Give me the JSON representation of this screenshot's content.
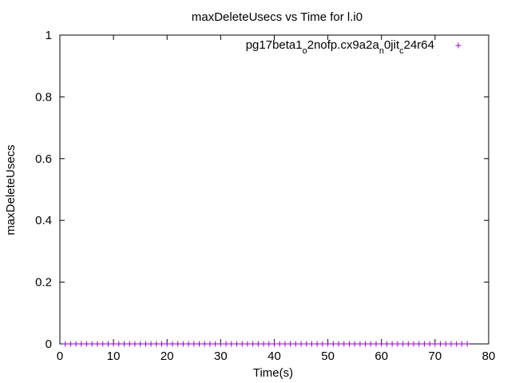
{
  "chart_data": {
    "type": "scatter",
    "title": "maxDeleteUsecs vs Time for l.i0",
    "xlabel": "Time(s)",
    "ylabel": "maxDeleteUsecs",
    "xlim": [
      0,
      80
    ],
    "ylim": [
      0,
      1
    ],
    "x_ticks": [
      0,
      10,
      20,
      30,
      40,
      50,
      60,
      70,
      80
    ],
    "y_ticks": [
      0,
      0.2,
      0.4,
      0.6,
      0.8,
      1
    ],
    "grid": false,
    "legend_position": "top-right",
    "series": [
      {
        "name": "pg17beta1_o2nofp.cx9a2a_n0jit_c24r64",
        "name_parts": [
          {
            "text": "pg17beta1",
            "sub": false
          },
          {
            "text": "o",
            "sub": true
          },
          {
            "text": "2nofp.cx9a2a",
            "sub": false
          },
          {
            "text": "n",
            "sub": true
          },
          {
            "text": "0jit",
            "sub": false
          },
          {
            "text": "c",
            "sub": true
          },
          {
            "text": "24r64",
            "sub": false
          }
        ],
        "color": "#9400d3",
        "marker": "plus",
        "x": [
          1,
          2,
          3,
          4,
          5,
          6,
          7,
          8,
          9,
          10,
          11,
          12,
          13,
          14,
          15,
          16,
          17,
          18,
          19,
          20,
          21,
          22,
          23,
          24,
          25,
          26,
          27,
          28,
          29,
          30,
          31,
          32,
          33,
          34,
          35,
          36,
          37,
          38,
          39,
          40,
          41,
          42,
          43,
          44,
          45,
          46,
          47,
          48,
          49,
          50,
          51,
          52,
          53,
          54,
          55,
          56,
          57,
          58,
          59,
          60,
          61,
          62,
          63,
          64,
          65,
          66,
          67,
          68,
          69,
          70,
          71,
          72,
          73,
          74,
          75,
          76
        ],
        "y": [
          0,
          0,
          0,
          0,
          0,
          0,
          0,
          0,
          0,
          0,
          0,
          0,
          0,
          0,
          0,
          0,
          0,
          0,
          0,
          0,
          0,
          0,
          0,
          0,
          0,
          0,
          0,
          0,
          0,
          0,
          0,
          0,
          0,
          0,
          0,
          0,
          0,
          0,
          0,
          0,
          0,
          0,
          0,
          0,
          0,
          0,
          0,
          0,
          0,
          0,
          0,
          0,
          0,
          0,
          0,
          0,
          0,
          0,
          0,
          0,
          0,
          0,
          0,
          0,
          0,
          0,
          0,
          0,
          0,
          0,
          0,
          0,
          0,
          0,
          0,
          0
        ]
      }
    ]
  }
}
